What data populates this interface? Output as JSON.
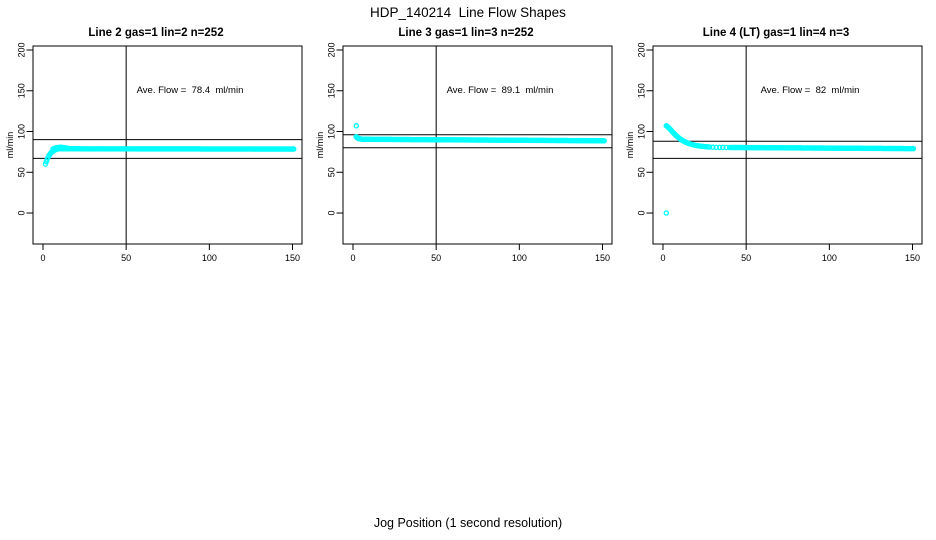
{
  "title": "HDP_140214  Line Flow Shapes",
  "xlabel": "Jog Position (1 second resolution)",
  "colors": {
    "points": "#00FFFF",
    "axes": "#000000",
    "background": "#FFFFFF"
  },
  "chart_data": {
    "type": "scatter",
    "title": "HDP_140214  Line Flow Shapes",
    "xlabel": "Jog Position (1 second resolution)",
    "shared_axes": {
      "ylabel": "ml/min",
      "xticks": [
        0,
        50,
        100,
        150
      ],
      "yticks": [
        0,
        50,
        100,
        150,
        200
      ],
      "xlim": [
        -6,
        155.7
      ],
      "ylim": [
        -38,
        204.9
      ],
      "vline_x": 50,
      "grid": false,
      "point_style": "open-circle"
    },
    "panels": [
      {
        "title": "Line 2 gas=1 lin=2 n=252",
        "ave_flow": 78.4,
        "n": 252,
        "ave_flow_label": "Ave. Flow =  78.4  ml/min",
        "hlines": [
          90,
          67
        ],
        "outliers": [
          [
            1.5,
            60
          ]
        ],
        "points_head": [
          [
            2,
            63
          ],
          [
            2.5,
            65.5
          ],
          [
            3,
            68
          ],
          [
            3.5,
            70
          ],
          [
            4,
            71.5
          ],
          [
            4.5,
            73
          ],
          [
            5,
            74.2
          ],
          [
            5.5,
            75.2
          ],
          [
            6,
            76
          ],
          [
            6.5,
            76.7
          ],
          [
            7,
            77.2
          ],
          [
            7.5,
            77.7
          ],
          [
            8,
            78.1
          ],
          [
            8.5,
            78.4
          ],
          [
            9,
            78.7
          ],
          [
            9.5,
            79
          ],
          [
            10,
            79.1
          ]
        ],
        "extra": [
          [
            6,
            78.6
          ],
          [
            7,
            79.4
          ],
          [
            8,
            80
          ],
          [
            9,
            80.4
          ],
          [
            10,
            80.7
          ],
          [
            11,
            80.7
          ],
          [
            12,
            80.4
          ],
          [
            13,
            80.1
          ],
          [
            14,
            79.7
          ],
          [
            15,
            79.3
          ],
          [
            16,
            79
          ]
        ],
        "plateau": {
          "x_from": 10.5,
          "x_to": 151,
          "step": 0.75,
          "y_from": 78.8,
          "y_to": 78.5
        }
      },
      {
        "title": "Line 3 gas=1 lin=3 n=252",
        "ave_flow": 89.1,
        "n": 252,
        "ave_flow_label": "Ave. Flow =  89.1  ml/min",
        "hlines": [
          96,
          80
        ],
        "outliers": [
          [
            2,
            107
          ]
        ],
        "points_head": [
          [
            2,
            93.5
          ],
          [
            2.5,
            92.5
          ],
          [
            3,
            91.8
          ],
          [
            3.5,
            91.4
          ],
          [
            4,
            91.1
          ],
          [
            4.5,
            90.9
          ],
          [
            5,
            90.7
          ]
        ],
        "extra": [],
        "plateau": {
          "x_from": 5.5,
          "x_to": 151,
          "step": 0.75,
          "y_from": 90.5,
          "y_to": 88.6
        }
      },
      {
        "title": "Line 4 (LT) gas=1 lin=4 n=3",
        "ave_flow": 82,
        "n": 3,
        "ave_flow_label": "Ave. Flow =  82  ml/min",
        "hlines": [
          88,
          67
        ],
        "outliers": [
          [
            2,
            0
          ]
        ],
        "points_head": [
          [
            2,
            107
          ],
          [
            3,
            105.5
          ],
          [
            4,
            103.5
          ],
          [
            5,
            101.2
          ],
          [
            6,
            99
          ],
          [
            7,
            96.8
          ],
          [
            8,
            94.8
          ],
          [
            9,
            93
          ],
          [
            10,
            91.4
          ],
          [
            11,
            90
          ],
          [
            12,
            88.7
          ],
          [
            13,
            87.6
          ],
          [
            14,
            86.6
          ],
          [
            15,
            85.8
          ],
          [
            16,
            85
          ],
          [
            17,
            84.4
          ],
          [
            18,
            83.8
          ],
          [
            19,
            83.3
          ],
          [
            20,
            82.9
          ],
          [
            21,
            82.5
          ],
          [
            22,
            82.2
          ],
          [
            23,
            81.9
          ],
          [
            24,
            81.7
          ],
          [
            25,
            81.5
          ],
          [
            26,
            81.3
          ],
          [
            27,
            81.1
          ],
          [
            28,
            81
          ],
          [
            30,
            80.8
          ],
          [
            32,
            80.6
          ],
          [
            34,
            80.5
          ],
          [
            36,
            80.5
          ],
          [
            38,
            80.4
          ],
          [
            40,
            80.4
          ]
        ],
        "extra": [
          [
            2.5,
            106.5
          ],
          [
            3.5,
            104.5
          ],
          [
            4.5,
            102.4
          ],
          [
            5.5,
            100.1
          ],
          [
            6.5,
            97.9
          ],
          [
            7.5,
            95.8
          ],
          [
            8.5,
            93.9
          ],
          [
            9.5,
            92.2
          ],
          [
            10.5,
            90.7
          ],
          [
            11.5,
            89.3
          ],
          [
            12.5,
            88.1
          ],
          [
            13.5,
            87.1
          ],
          [
            14.5,
            86.2
          ],
          [
            15.5,
            85.4
          ]
        ],
        "plateau": {
          "x_from": 41,
          "x_to": 151,
          "step": 0.75,
          "y_from": 80.4,
          "y_to": 79
        }
      }
    ]
  }
}
